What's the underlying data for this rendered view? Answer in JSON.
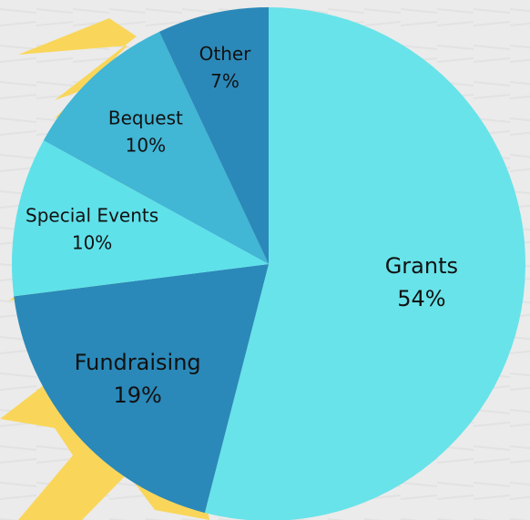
{
  "chart_data": {
    "type": "pie",
    "categories": [
      "Grants",
      "Fundraising",
      "Special Events",
      "Bequest",
      "Other"
    ],
    "values": [
      54,
      19,
      10,
      10,
      7
    ],
    "value_labels": [
      "54%",
      "19%",
      "10%",
      "10%",
      "7%"
    ],
    "colors": [
      "#68e3e9",
      "#2a89b9",
      "#5fe1ea",
      "#41b6d5",
      "#2b89b9"
    ]
  }
}
